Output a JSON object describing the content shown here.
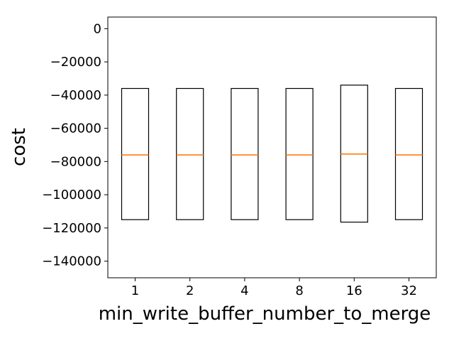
{
  "chart_data": {
    "type": "box",
    "title": "",
    "xlabel": "min_write_buffer_number_to_merge",
    "ylabel": "cost",
    "ylim": [
      -150000,
      7000
    ],
    "yticks": [
      0,
      -20000,
      -40000,
      -60000,
      -80000,
      -100000,
      -120000,
      -140000
    ],
    "ytick_labels": [
      "0",
      "−20000",
      "−40000",
      "−60000",
      "−80000",
      "−100000",
      "−120000",
      "−140000"
    ],
    "categories": [
      "1",
      "2",
      "4",
      "8",
      "16",
      "32"
    ],
    "highlight_category": "16",
    "highlight_color": "#ff0000",
    "box_color": "#000000",
    "median_color": "#ff7f0e",
    "grid": false,
    "boxes": [
      {
        "category": "1",
        "q1": -115000,
        "median": -76000,
        "q3": -36000
      },
      {
        "category": "2",
        "q1": -115000,
        "median": -76000,
        "q3": -36000
      },
      {
        "category": "4",
        "q1": -115000,
        "median": -76000,
        "q3": -36000
      },
      {
        "category": "8",
        "q1": -115000,
        "median": -76000,
        "q3": -36000
      },
      {
        "category": "16",
        "q1": -116500,
        "median": -75500,
        "q3": -34000
      },
      {
        "category": "32",
        "q1": -115000,
        "median": -76000,
        "q3": -36000
      }
    ]
  }
}
